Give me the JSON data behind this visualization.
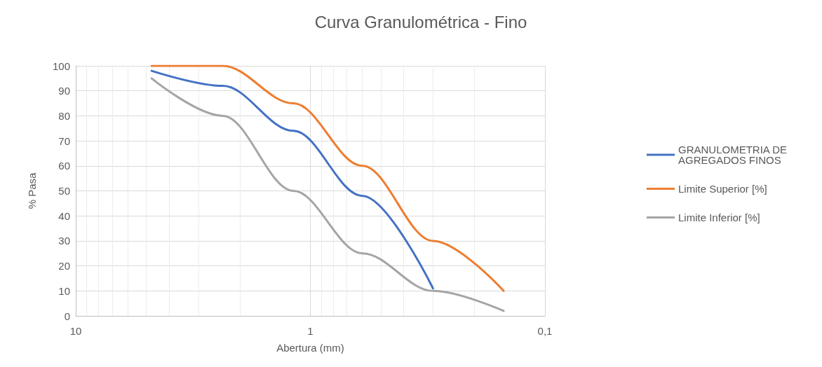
{
  "chart_data": {
    "type": "line",
    "title": "Curva Granulométrica - Fino",
    "xlabel": "Abertura (mm)",
    "ylabel": "% Pasa",
    "log": "x",
    "xlim": [
      10,
      0.1
    ],
    "xticks": [
      10,
      1,
      {
        "value": 0.1,
        "label": "0,1"
      }
    ],
    "ylim": [
      0,
      100
    ],
    "yticks": [
      0,
      10,
      20,
      30,
      40,
      50,
      60,
      70,
      80,
      90,
      100
    ],
    "grid": true,
    "legend": "right",
    "marker": "none",
    "line_style": "solid",
    "series": [
      {
        "name": "GRANULOMETRIA DE AGREGADOS FINOS",
        "color": "#4472c4",
        "x": [
          4.75,
          2.36,
          1.18,
          0.6,
          0.3
        ],
        "values": [
          98,
          92,
          74,
          48,
          11
        ]
      },
      {
        "name": "Limite Superior [%]",
        "color": "#ed7d31",
        "x": [
          4.75,
          2.36,
          1.18,
          0.6,
          0.3,
          0.15
        ],
        "values": [
          100,
          100,
          85,
          60,
          30,
          10
        ]
      },
      {
        "name": "Limite Inferior [%]",
        "color": "#a5a5a5",
        "x": [
          4.75,
          2.36,
          1.18,
          0.6,
          0.3,
          0.15
        ],
        "values": [
          95,
          80,
          50,
          25,
          10,
          2
        ]
      }
    ]
  }
}
